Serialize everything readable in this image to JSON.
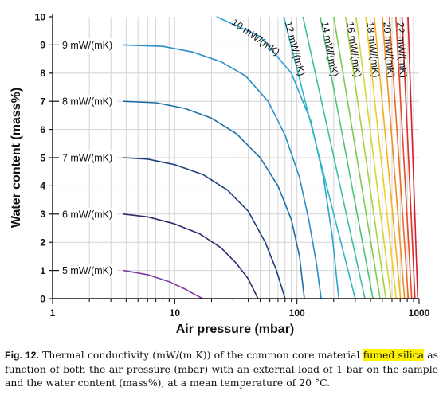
{
  "chart_data": {
    "type": "contour",
    "xlabel": "Air pressure (mbar)",
    "ylabel": "Water content (mass%)",
    "x_scale": "log",
    "xlim": [
      1,
      1000
    ],
    "ylim": [
      0,
      10
    ],
    "x_ticks": [
      "1",
      "10",
      "100",
      "1000"
    ],
    "y_ticks": [
      "0",
      "1",
      "2",
      "3",
      "4",
      "5",
      "6",
      "7",
      "8",
      "9",
      "10"
    ],
    "levels_left": [
      {
        "label": "5 mW/(mK)",
        "value": 5,
        "color": "#7a3aa8",
        "points": [
          [
            3.8,
            1.0
          ],
          [
            6,
            0.85
          ],
          [
            9,
            0.6
          ],
          [
            12,
            0.35
          ],
          [
            15,
            0.12
          ],
          [
            17,
            0
          ]
        ]
      },
      {
        "label": "6 mW/(mK)",
        "value": 6,
        "color": "#2e2a6e",
        "points": [
          [
            3.8,
            3.0
          ],
          [
            6,
            2.9
          ],
          [
            10,
            2.65
          ],
          [
            16,
            2.3
          ],
          [
            24,
            1.8
          ],
          [
            32,
            1.25
          ],
          [
            40,
            0.7
          ],
          [
            48,
            0
          ]
        ]
      },
      {
        "label": "7 mW/(mK)",
        "value": 7,
        "color": "#1d3f7c",
        "points": [
          [
            3.8,
            5.0
          ],
          [
            6,
            4.95
          ],
          [
            10,
            4.75
          ],
          [
            17,
            4.4
          ],
          [
            27,
            3.85
          ],
          [
            40,
            3.1
          ],
          [
            55,
            2.0
          ],
          [
            68,
            1.0
          ],
          [
            80,
            0
          ]
        ]
      },
      {
        "label": "8 mW/(mK)",
        "value": 8,
        "color": "#1f6ea3",
        "points": [
          [
            3.8,
            7.0
          ],
          [
            7,
            6.95
          ],
          [
            12,
            6.75
          ],
          [
            20,
            6.4
          ],
          [
            32,
            5.85
          ],
          [
            50,
            5.0
          ],
          [
            70,
            4.0
          ],
          [
            90,
            2.8
          ],
          [
            105,
            1.5
          ],
          [
            115,
            0
          ]
        ]
      },
      {
        "label": "9 mW/(mK)",
        "value": 9,
        "color": "#2b8ec7",
        "points": [
          [
            3.8,
            9.0
          ],
          [
            8,
            8.95
          ],
          [
            14,
            8.75
          ],
          [
            24,
            8.4
          ],
          [
            38,
            7.9
          ],
          [
            58,
            7.0
          ],
          [
            80,
            5.8
          ],
          [
            105,
            4.3
          ],
          [
            125,
            2.8
          ],
          [
            145,
            1.2
          ],
          [
            158,
            0
          ]
        ]
      }
    ],
    "levels_top": [
      {
        "label": "10 mW/(mK)",
        "value": 10,
        "color": "#2aa3d3",
        "points": [
          [
            22,
            10
          ],
          [
            50,
            9.3
          ],
          [
            90,
            8.0
          ],
          [
            130,
            6.3
          ],
          [
            165,
            4.3
          ],
          [
            195,
            2.2
          ],
          [
            220,
            0
          ]
        ]
      },
      {
        "label": "12 mW/(mK)",
        "value": 12,
        "color": "#33b7c4",
        "points": [
          [
            78,
            10
          ],
          [
            300,
            0
          ]
        ]
      },
      {
        "label": "",
        "value": 13,
        "color": "#3dbfa2",
        "points": [
          [
            112,
            10
          ],
          [
            360,
            0
          ]
        ]
      },
      {
        "label": "14 mW/(mK)",
        "value": 14,
        "color": "#4cc47a",
        "points": [
          [
            155,
            10
          ],
          [
            420,
            0
          ]
        ]
      },
      {
        "label": "",
        "value": 15,
        "color": "#7ccb54",
        "points": [
          [
            200,
            10
          ],
          [
            480,
            0
          ]
        ]
      },
      {
        "label": "16 mW/(mK)",
        "value": 16,
        "color": "#a8d23f",
        "points": [
          [
            250,
            10
          ],
          [
            535,
            0
          ]
        ]
      },
      {
        "label": "",
        "value": 17,
        "color": "#d4d832",
        "points": [
          [
            305,
            10
          ],
          [
            590,
            0
          ]
        ]
      },
      {
        "label": "18 mW/(mK)",
        "value": 18,
        "color": "#f0cf22",
        "points": [
          [
            365,
            10
          ],
          [
            650,
            0
          ]
        ]
      },
      {
        "label": "",
        "value": 19,
        "color": "#f5b020",
        "points": [
          [
            430,
            10
          ],
          [
            705,
            0
          ]
        ]
      },
      {
        "label": "20 mW/(mK)",
        "value": 20,
        "color": "#f28f21",
        "points": [
          [
            500,
            10
          ],
          [
            760,
            0
          ]
        ]
      },
      {
        "label": "",
        "value": 21,
        "color": "#ee6a23",
        "points": [
          [
            570,
            10
          ],
          [
            815,
            0
          ]
        ]
      },
      {
        "label": "22 mW/(mK)",
        "value": 22,
        "color": "#e84a27",
        "points": [
          [
            645,
            10
          ],
          [
            870,
            0
          ]
        ]
      },
      {
        "label": "",
        "value": 23,
        "color": "#e0302c",
        "points": [
          [
            725,
            10
          ],
          [
            925,
            0
          ]
        ]
      },
      {
        "label": "",
        "value": 24,
        "color": "#d41d2e",
        "points": [
          [
            810,
            10
          ],
          [
            975,
            0
          ]
        ]
      }
    ]
  },
  "caption": {
    "label": "Fig. 12.",
    "text_before": " Thermal conductivity (mW/(m K)) of the common core material ",
    "highlight": "fumed silica",
    "text_after": " as function of both the air pressure (mbar) with an external load of 1 bar on the sample and the water content (mass%), at a mean temperature of 20 °C."
  }
}
